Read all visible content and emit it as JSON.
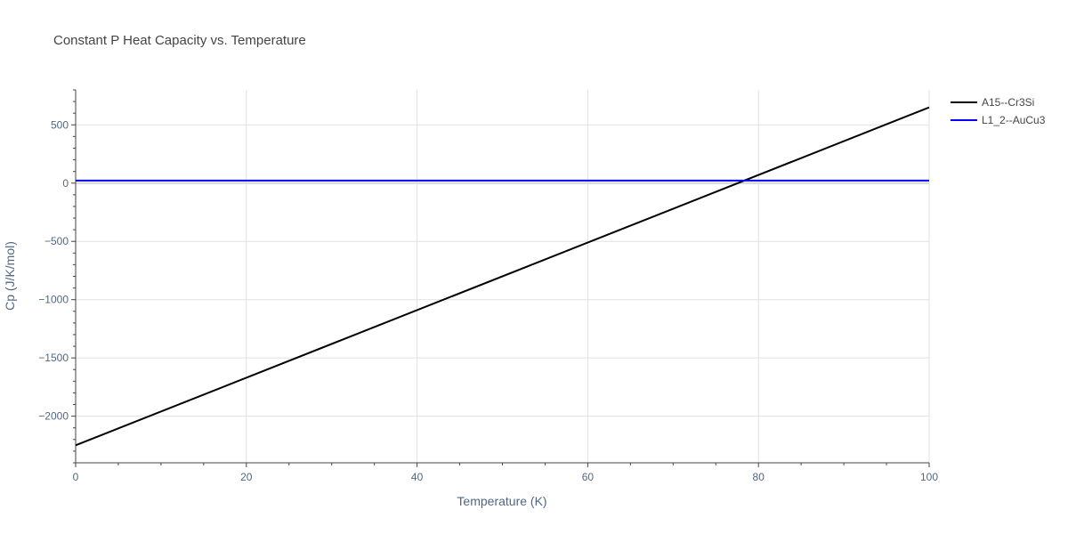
{
  "chart_data": {
    "type": "line",
    "title": "Constant P Heat Capacity vs. Temperature",
    "xlabel": "Temperature (K)",
    "ylabel": "Cp (J/K/mol)",
    "xlim": [
      0,
      100
    ],
    "ylim": [
      -2400,
      800
    ],
    "x_ticks": [
      0,
      20,
      40,
      60,
      80,
      100
    ],
    "x_tick_labels": [
      "0",
      "20",
      "40",
      "60",
      "80",
      "100"
    ],
    "y_ticks": [
      500,
      0,
      -500,
      -1000,
      -1500,
      -2000
    ],
    "y_tick_labels": [
      "500",
      "0",
      "−500",
      "−1000",
      "−1500",
      "−2000"
    ],
    "grid": true,
    "legend_position": "top-right",
    "series": [
      {
        "name": "A15--Cr3Si",
        "color": "#000000",
        "x": [
          0,
          100
        ],
        "y": [
          -2250,
          650
        ]
      },
      {
        "name": "L1_2--AuCu3",
        "color": "#0000ff",
        "x": [
          0,
          100
        ],
        "y": [
          22,
          22
        ]
      }
    ]
  }
}
